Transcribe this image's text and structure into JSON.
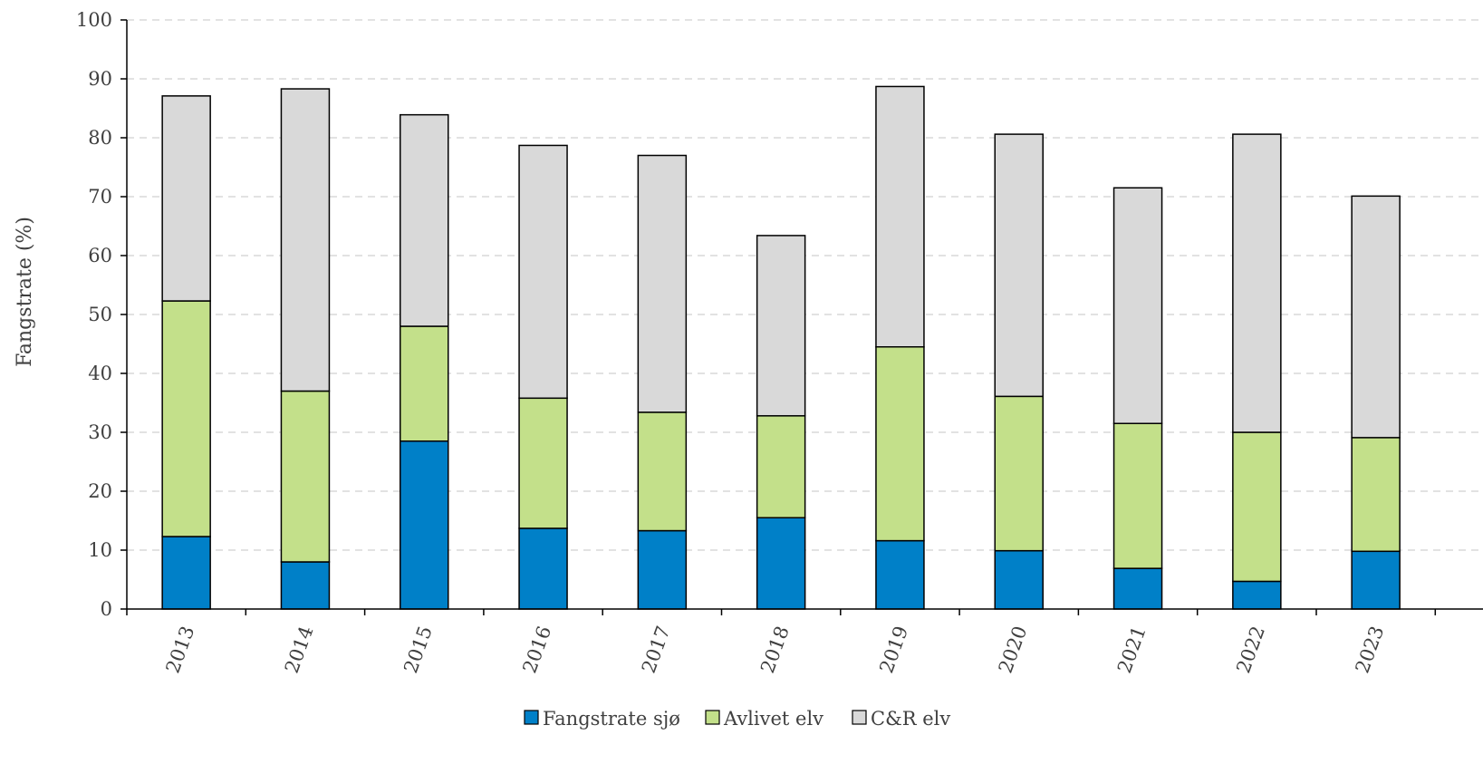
{
  "chart_data": {
    "type": "bar",
    "stacked": true,
    "categories": [
      "2013",
      "2014",
      "2015",
      "2016",
      "2017",
      "2018",
      "2019",
      "2020",
      "2021",
      "2022",
      "2023"
    ],
    "series": [
      {
        "name": "Fangstrate sjø",
        "color": "#0080C8",
        "values": [
          12.3,
          8.0,
          28.5,
          13.7,
          13.3,
          15.5,
          11.6,
          9.9,
          6.9,
          4.7,
          9.8
        ]
      },
      {
        "name": "Avlivet elv",
        "color": "#C3E08A",
        "values": [
          40.0,
          29.0,
          19.5,
          22.1,
          20.1,
          17.3,
          32.9,
          26.2,
          24.6,
          25.3,
          19.3
        ]
      },
      {
        "name": "C&R elv",
        "color": "#D9D9D9",
        "values": [
          34.8,
          51.3,
          35.9,
          42.9,
          43.6,
          30.6,
          44.2,
          44.5,
          40.0,
          50.6,
          41.0
        ]
      }
    ],
    "ylabel": "Fangstrate (%)",
    "ylim": [
      0,
      100
    ],
    "yticks": [
      "0",
      "10",
      "20",
      "30",
      "40",
      "50",
      "60",
      "70",
      "80",
      "90",
      "100"
    ],
    "grid": "horizontal-dashed",
    "legend_position": "bottom"
  }
}
